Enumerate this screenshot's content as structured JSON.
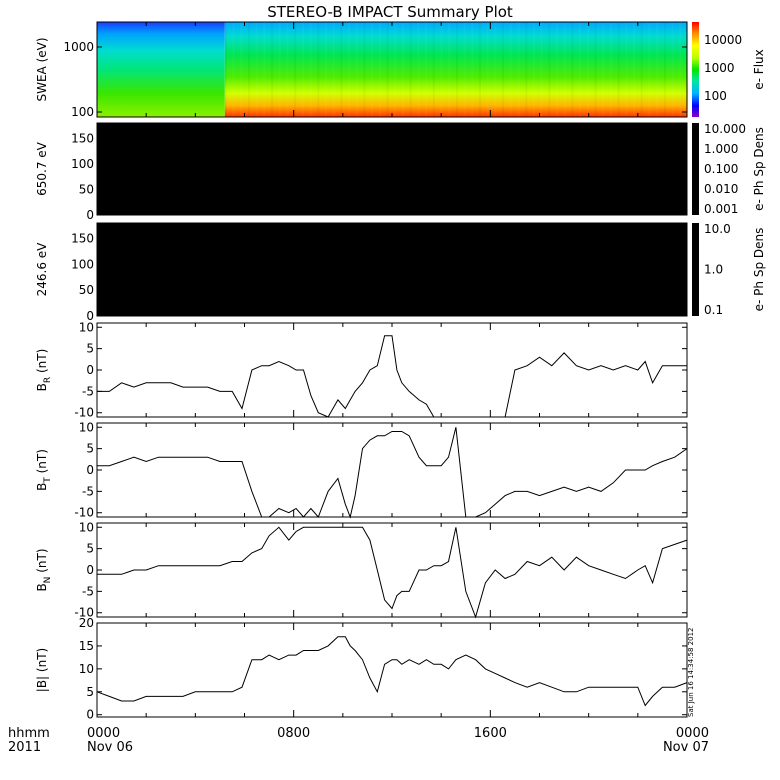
{
  "title": "STEREO-B IMPACT Summary Plot",
  "footer": {
    "row_label_1": "hhmm",
    "row_label_2": "2011",
    "x_ticks": [
      {
        "t": 0,
        "line1": "0000",
        "line2": "Nov 06"
      },
      {
        "t": 8,
        "line1": "0800",
        "line2": ""
      },
      {
        "t": 16,
        "line1": "1600",
        "line2": ""
      },
      {
        "t": 24,
        "line1": "0000",
        "line2": "Nov 07"
      }
    ],
    "timestamp": "Sat Jun 16 14:34:58 2012"
  },
  "colors": {
    "line": "#000000",
    "colorbar_stops": [
      "#8a00c8",
      "#0000ff",
      "#00b4ff",
      "#00e6a0",
      "#00e600",
      "#b4ff00",
      "#ffff00",
      "#ff8c00",
      "#ff0000"
    ]
  },
  "chart_data": [
    {
      "type": "heatmap",
      "name": "swea",
      "ylabel": "SWEA (eV)",
      "yscale": "log",
      "ylim": [
        95,
        2000
      ],
      "yticks": [
        "1000",
        "100"
      ],
      "colorbar": {
        "label": "e- Flux",
        "ticks": [
          "10000",
          "1000",
          "100"
        ]
      },
      "xlim": [
        0,
        24
      ],
      "description_note": ""
    },
    {
      "type": "heatmap",
      "name": "pad650",
      "ylabel": "650.7 eV",
      "ylim": [
        0,
        180
      ],
      "yticks": [
        "150",
        "100",
        "50",
        "0"
      ],
      "colorbar": {
        "label": "e- Ph Sp Dens",
        "ticks": [
          "10.000",
          "1.000",
          "0.100",
          "0.010",
          "0.001"
        ]
      }
    },
    {
      "type": "heatmap",
      "name": "pad246",
      "ylabel": "246.6 eV",
      "ylim": [
        0,
        180
      ],
      "yticks": [
        "150",
        "100",
        "50",
        "0"
      ],
      "colorbar": {
        "label": "e- Ph Sp Dens",
        "ticks": [
          "10.0",
          "1.0",
          "0.1"
        ]
      }
    },
    {
      "type": "line",
      "name": "br",
      "ylabel_main": "B",
      "ylabel_sub": "R",
      "ylabel_unit": " (nT)",
      "ylim": [
        -11,
        11
      ],
      "yticks": [
        "10",
        "5",
        "0",
        "-5",
        "-10"
      ],
      "x": [
        0,
        0.5,
        1,
        1.5,
        2,
        2.5,
        3,
        3.5,
        4,
        4.5,
        5,
        5.5,
        5.9,
        6.3,
        6.7,
        7,
        7.4,
        7.8,
        8.1,
        8.4,
        8.7,
        9,
        9.4,
        9.8,
        10.1,
        10.3,
        10.5,
        10.8,
        11.1,
        11.4,
        11.7,
        12.0,
        12.2,
        12.4,
        12.7,
        13.1,
        13.4,
        13.7,
        14.0,
        14.3,
        14.6,
        15.0,
        15.4,
        15.8,
        16.2,
        16.6,
        17.0,
        17.5,
        18.0,
        18.5,
        19.0,
        19.5,
        20.0,
        20.5,
        21.0,
        21.5,
        22.0,
        22.3,
        22.6,
        23.0,
        23.5,
        24
      ],
      "y": [
        -5,
        -5,
        -3,
        -4,
        -3,
        -3,
        -3,
        -4,
        -4,
        -4,
        -5,
        -5,
        -9,
        0,
        1,
        1,
        2,
        1,
        0,
        0,
        -6,
        -10,
        -11,
        -7,
        -9,
        -7,
        -5,
        -3,
        0,
        1,
        8,
        8,
        0,
        -3,
        -5,
        -7,
        -8,
        -11,
        -11,
        -11,
        -11,
        -11,
        -11,
        -11,
        -11,
        -11,
        0,
        1,
        3,
        1,
        4,
        1,
        0,
        1,
        0,
        1,
        0,
        2,
        -3,
        1,
        1,
        1
      ]
    },
    {
      "type": "line",
      "name": "bt",
      "ylabel_main": "B",
      "ylabel_sub": "T",
      "ylabel_unit": " (nT)",
      "ylim": [
        -11,
        11
      ],
      "yticks": [
        "10",
        "5",
        "0",
        "-5",
        "-10"
      ],
      "x": [
        0,
        0.5,
        1,
        1.5,
        2,
        2.5,
        3,
        3.5,
        4,
        4.5,
        5,
        5.5,
        5.9,
        6.3,
        6.7,
        7,
        7.4,
        7.8,
        8.1,
        8.4,
        8.7,
        9,
        9.4,
        9.8,
        10.1,
        10.3,
        10.5,
        10.8,
        11.1,
        11.4,
        11.7,
        12.0,
        12.2,
        12.4,
        12.7,
        13.1,
        13.4,
        13.7,
        14.0,
        14.3,
        14.6,
        15.0,
        15.4,
        15.8,
        16.2,
        16.6,
        17.0,
        17.5,
        18.0,
        18.5,
        19.0,
        19.5,
        20.0,
        20.5,
        21.0,
        21.5,
        22.0,
        22.3,
        22.6,
        23.0,
        23.5,
        24
      ],
      "y": [
        1,
        1,
        2,
        3,
        2,
        3,
        3,
        3,
        3,
        3,
        2,
        2,
        2,
        -5,
        -11,
        -11,
        -9,
        -10,
        -9,
        -11,
        -9,
        -11,
        -5,
        -2,
        -8,
        -11,
        -6,
        5,
        7,
        8,
        8,
        9,
        9,
        9,
        8,
        3,
        1,
        1,
        1,
        3,
        10,
        -11,
        -11,
        -10,
        -8,
        -6,
        -5,
        -5,
        -6,
        -5,
        -4,
        -5,
        -4,
        -5,
        -3,
        0,
        0,
        0,
        1,
        2,
        3,
        5
      ]
    },
    {
      "type": "line",
      "name": "bn",
      "ylabel_main": "B",
      "ylabel_sub": "N",
      "ylabel_unit": " (nT)",
      "ylim": [
        -11,
        11
      ],
      "yticks": [
        "10",
        "5",
        "0",
        "-5",
        "-10"
      ],
      "x": [
        0,
        0.5,
        1,
        1.5,
        2,
        2.5,
        3,
        3.5,
        4,
        4.5,
        5,
        5.5,
        5.9,
        6.3,
        6.7,
        7,
        7.4,
        7.8,
        8.1,
        8.4,
        8.7,
        9,
        9.4,
        9.8,
        10.1,
        10.3,
        10.5,
        10.8,
        11.1,
        11.4,
        11.7,
        12.0,
        12.2,
        12.4,
        12.7,
        13.1,
        13.4,
        13.7,
        14.0,
        14.3,
        14.6,
        15.0,
        15.4,
        15.8,
        16.2,
        16.6,
        17.0,
        17.5,
        18.0,
        18.5,
        19.0,
        19.5,
        20.0,
        20.5,
        21.0,
        21.5,
        22.0,
        22.3,
        22.6,
        23.0,
        23.5,
        24
      ],
      "y": [
        -1,
        -1,
        -1,
        0,
        0,
        1,
        1,
        1,
        1,
        1,
        1,
        2,
        2,
        4,
        5,
        8,
        10,
        7,
        9,
        10,
        10,
        10,
        10,
        10,
        10,
        10,
        10,
        10,
        7,
        0,
        -7,
        -9,
        -6,
        -5,
        -5,
        0,
        0,
        1,
        1,
        2,
        10,
        -5,
        -11,
        -3,
        0,
        -2,
        -1,
        2,
        1,
        3,
        0,
        3,
        1,
        0,
        -1,
        -2,
        0,
        1,
        -3,
        5,
        6,
        7
      ]
    },
    {
      "type": "line",
      "name": "bmag",
      "ylabel_main": "|B|",
      "ylabel_sub": "",
      "ylabel_unit": " (nT)",
      "ylim": [
        -0.5,
        20
      ],
      "yticks": [
        "20",
        "15",
        "10",
        "5",
        "0"
      ],
      "x": [
        0,
        0.5,
        1,
        1.5,
        2,
        2.5,
        3,
        3.5,
        4,
        4.5,
        5,
        5.5,
        5.9,
        6.3,
        6.7,
        7,
        7.4,
        7.8,
        8.1,
        8.4,
        8.7,
        9,
        9.4,
        9.8,
        10.1,
        10.3,
        10.5,
        10.8,
        11.1,
        11.4,
        11.7,
        12.0,
        12.2,
        12.4,
        12.7,
        13.1,
        13.4,
        13.7,
        14.0,
        14.3,
        14.6,
        15.0,
        15.4,
        15.8,
        16.2,
        16.6,
        17.0,
        17.5,
        18.0,
        18.5,
        19.0,
        19.5,
        20.0,
        20.5,
        21.0,
        21.5,
        22.0,
        22.3,
        22.6,
        23.0,
        23.5,
        24
      ],
      "y": [
        5,
        4,
        3,
        3,
        4,
        4,
        4,
        4,
        5,
        5,
        5,
        5,
        6,
        12,
        12,
        13,
        12,
        13,
        13,
        14,
        14,
        14,
        15,
        17,
        17,
        15,
        14,
        12,
        8,
        5,
        11,
        12,
        12,
        11,
        12,
        11,
        12,
        11,
        11,
        10,
        12,
        13,
        12,
        10,
        9,
        8,
        7,
        6,
        7,
        6,
        5,
        5,
        6,
        6,
        6,
        6,
        6,
        2,
        4,
        6,
        6,
        7
      ]
    }
  ]
}
